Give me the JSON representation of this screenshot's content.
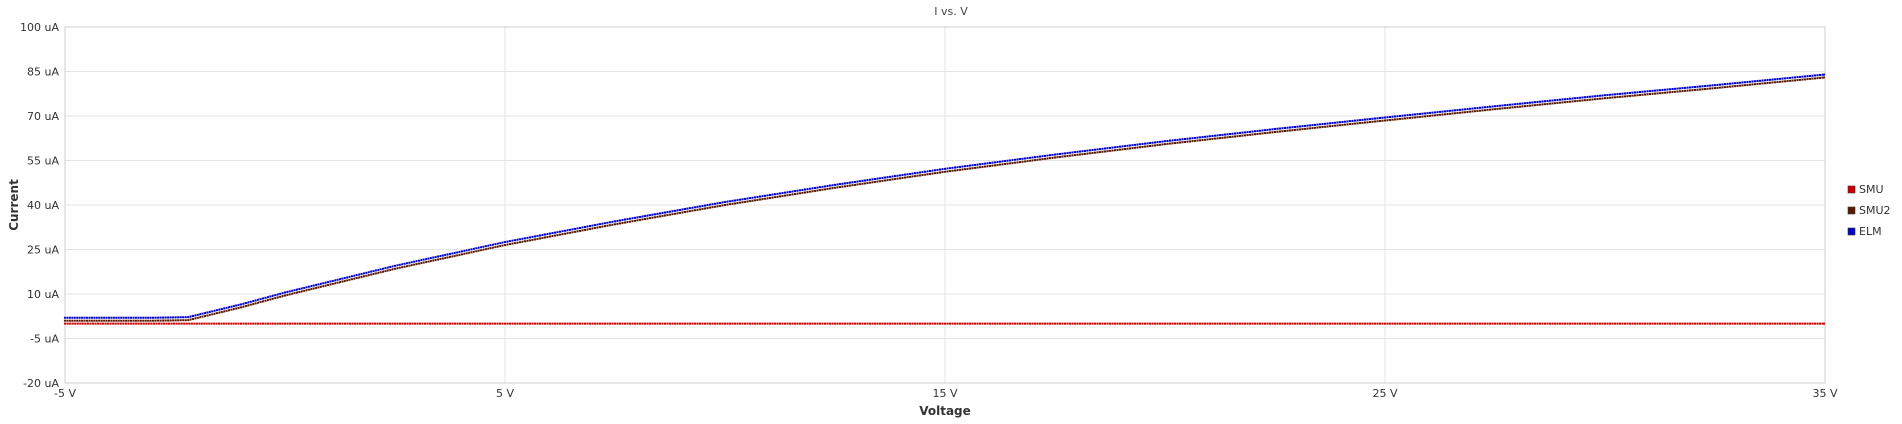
{
  "chart_data": {
    "type": "line",
    "title": "I vs. V",
    "xlabel": "Voltage",
    "ylabel": "Current",
    "xlim": [
      -5,
      35
    ],
    "ylim": [
      -20,
      100
    ],
    "x_ticks": [
      -5,
      5,
      15,
      25,
      35
    ],
    "x_tick_labels": [
      "-5 V",
      "5 V",
      "15 V",
      "25 V",
      "35 V"
    ],
    "y_ticks": [
      -20,
      -5,
      10,
      25,
      40,
      55,
      70,
      85,
      100
    ],
    "y_tick_labels": [
      "-20 uA",
      "-5 uA",
      "10 uA",
      "25 uA",
      "40 uA",
      "55 uA",
      "70 uA",
      "85 uA",
      "100 uA"
    ],
    "grid": true,
    "legend_position": "right",
    "series": [
      {
        "name": "SMU",
        "color": "#cc0000",
        "x": [
          -5,
          -2,
          0,
          2.5,
          5,
          7.5,
          10,
          12.5,
          15,
          17.5,
          20,
          22.5,
          25,
          27.5,
          30,
          32.5,
          35
        ],
        "y": [
          0,
          0,
          0,
          0,
          0,
          0,
          0,
          0,
          0,
          0,
          0,
          0,
          0,
          0,
          0,
          0,
          0
        ]
      },
      {
        "name": "SMU2",
        "color": "#5a1a00",
        "x": [
          -5,
          -3,
          -2.2,
          -1,
          0,
          2.5,
          5,
          7.5,
          10,
          12.5,
          15,
          17.5,
          20,
          22.5,
          25,
          27.5,
          30,
          32.5,
          35
        ],
        "y": [
          1,
          1,
          1.2,
          5.5,
          9.5,
          18.5,
          26.5,
          33.5,
          40,
          45.8,
          51.2,
          56,
          60.5,
          64.6,
          68.5,
          72.3,
          76,
          79.4,
          83
        ]
      },
      {
        "name": "ELM",
        "color": "#0000cc",
        "x": [
          -5,
          -3,
          -2.2,
          -1,
          0,
          2.5,
          5,
          7.5,
          10,
          12.5,
          15,
          17.5,
          20,
          22.5,
          25,
          27.5,
          30,
          32.5,
          35
        ],
        "y": [
          2,
          2,
          2.2,
          6.5,
          10.5,
          19.5,
          27.5,
          34.5,
          41,
          46.8,
          52.2,
          57,
          61.5,
          65.6,
          69.5,
          73.3,
          77,
          80.4,
          84
        ]
      }
    ]
  }
}
